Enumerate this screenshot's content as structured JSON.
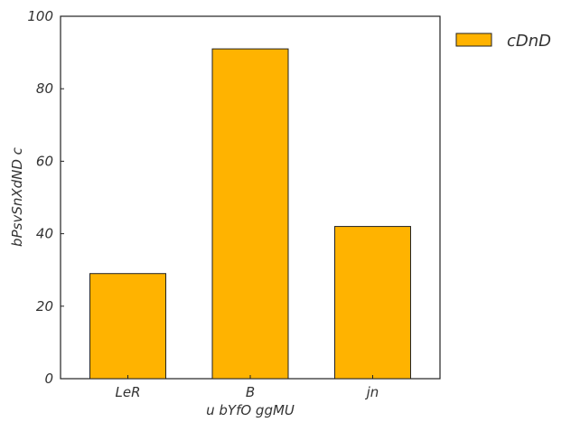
{
  "chart_data": {
    "type": "bar",
    "title": "",
    "xlabel": "u bYfO ggMU",
    "ylabel": "bPsvSnXdND c",
    "categories": [
      "LeR",
      "B",
      "jn"
    ],
    "series": [
      {
        "name": "cDnD",
        "values": [
          29,
          91,
          42
        ],
        "color": "#FFB300"
      }
    ],
    "ylim": [
      0,
      100
    ],
    "yticks": [
      0,
      20,
      40,
      60,
      80,
      100
    ],
    "grid": false,
    "legend": {
      "placement": "outside-top-right"
    }
  }
}
